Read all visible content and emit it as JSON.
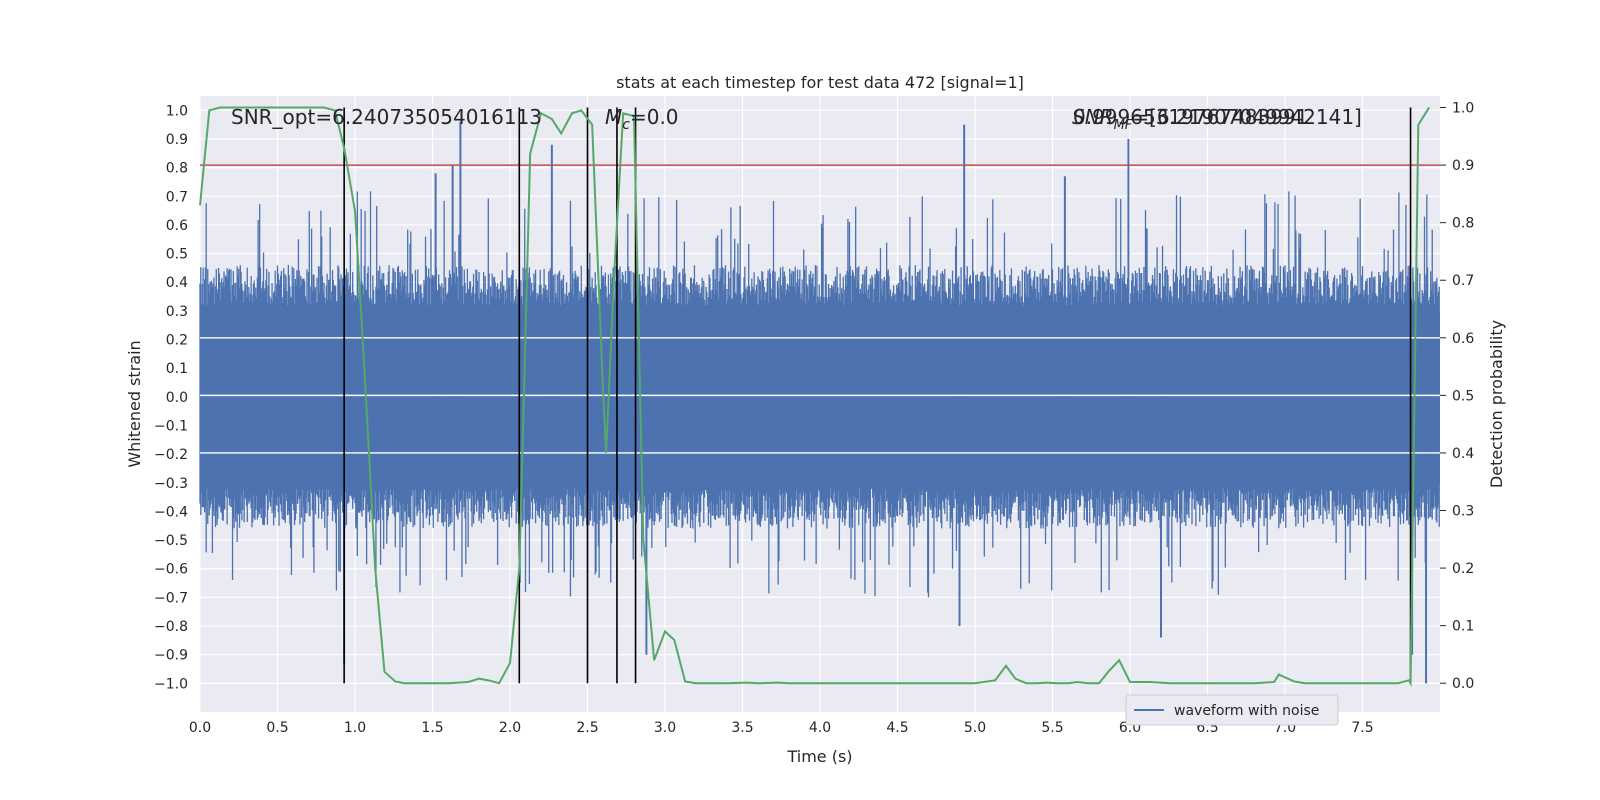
{
  "chart_data": {
    "type": "line",
    "title": "stats at each timestep for test data 472 [signal=1]",
    "xlabel": "Time (s)",
    "ylabel": "Whitened strain",
    "y2label": "Detection probability",
    "xlim": [
      0.0,
      8.0
    ],
    "ylim": [
      -1.1,
      1.05
    ],
    "y2lim": [
      -0.05,
      1.02
    ],
    "xticks": [
      "0.0",
      "0.5",
      "1.0",
      "1.5",
      "2.0",
      "2.5",
      "3.0",
      "3.5",
      "4.0",
      "4.5",
      "5.0",
      "5.5",
      "6.0",
      "6.5",
      "7.0",
      "7.5"
    ],
    "yticks": [
      "1.0",
      "0.9",
      "0.8",
      "0.7",
      "0.6",
      "0.5",
      "0.4",
      "0.3",
      "0.2",
      "0.1",
      "0.0",
      "-0.1",
      "-0.2",
      "-0.3",
      "-0.4",
      "-0.5",
      "-0.6",
      "-0.7",
      "-0.8",
      "-0.9",
      "-1.0"
    ],
    "y2ticks": [
      "1.0",
      "0.9",
      "0.8",
      "0.7",
      "0.6",
      "0.5",
      "0.4",
      "0.3",
      "0.2",
      "0.1",
      "0.0"
    ],
    "annotations": {
      "snr_opt": "SNR_opt=6.240735054016113",
      "mc": "M",
      "mc_sub": "c",
      "mc_val": "=0.0",
      "snr_mf_overlap_a": "SNR",
      "snr_mf_overlap_b": "=[6.21907049942141]",
      "snr_mf_overlap_c": "0.99965319767483991"
    },
    "legend": {
      "label": "waveform with noise",
      "position": "bottom-right"
    },
    "threshold": {
      "value": 0.9,
      "color": "#c44e52"
    },
    "vertical_lines": [
      0.93,
      2.06,
      2.5,
      2.69,
      2.81,
      7.81
    ],
    "series": [
      {
        "name": "waveform with noise",
        "axis": "left",
        "color": "#4c72b0",
        "style": "dense-noise",
        "samples": 4096,
        "duration": 8.0,
        "typical_range": [
          -0.45,
          0.45
        ],
        "peaks": [
          {
            "t": 0.93,
            "v": -0.93
          },
          {
            "t": 1.68,
            "v": 0.96
          },
          {
            "t": 1.63,
            "v": 0.81
          },
          {
            "t": 1.52,
            "v": 0.78
          },
          {
            "t": 2.88,
            "v": -0.9
          },
          {
            "t": 4.93,
            "v": 0.95
          },
          {
            "t": 5.99,
            "v": 0.9
          },
          {
            "t": 6.2,
            "v": -0.84
          },
          {
            "t": 7.91,
            "v": -1.0
          },
          {
            "t": 4.9,
            "v": -0.8
          },
          {
            "t": 2.27,
            "v": 0.88
          },
          {
            "t": 5.58,
            "v": 0.77
          },
          {
            "t": 7.82,
            "v": -0.9
          }
        ]
      },
      {
        "name": "detection probability",
        "axis": "right",
        "color": "#55a868",
        "x": [
          0.0,
          0.06,
          0.13,
          0.2,
          0.4,
          0.6,
          0.8,
          0.87,
          0.93,
          1.0,
          1.06,
          1.13,
          1.19,
          1.26,
          1.32,
          1.46,
          1.6,
          1.73,
          1.8,
          1.86,
          1.93,
          2.0,
          2.06,
          2.09,
          2.13,
          2.2,
          2.27,
          2.33,
          2.4,
          2.46,
          2.53,
          2.6,
          2.62,
          2.67,
          2.73,
          2.8,
          2.86,
          2.93,
          3.0,
          3.06,
          3.13,
          3.2,
          3.4,
          3.53,
          3.6,
          3.73,
          3.8,
          3.93,
          4.0,
          4.2,
          4.4,
          4.6,
          4.8,
          5.0,
          5.13,
          5.2,
          5.26,
          5.33,
          5.4,
          5.46,
          5.53,
          5.6,
          5.66,
          5.73,
          5.8,
          5.86,
          5.93,
          6.0,
          6.13,
          6.26,
          6.4,
          6.6,
          6.8,
          6.93,
          6.96,
          7.06,
          7.13,
          7.26,
          7.4,
          7.6,
          7.73,
          7.8,
          7.81,
          7.86,
          7.93
        ],
        "values": [
          0.83,
          0.995,
          1.0,
          1.0,
          1.0,
          1.0,
          1.0,
          0.995,
          0.93,
          0.82,
          0.55,
          0.2,
          0.02,
          0.003,
          0.0,
          0.0,
          0.0,
          0.002,
          0.008,
          0.005,
          0.0,
          0.035,
          0.2,
          0.5,
          0.92,
          0.99,
          0.98,
          0.955,
          0.99,
          0.995,
          0.97,
          0.51,
          0.4,
          0.7,
          0.99,
          0.985,
          0.25,
          0.04,
          0.09,
          0.075,
          0.003,
          0.0,
          0.0,
          0.001,
          0.0,
          0.001,
          0.0,
          0.0,
          0.0,
          0.0,
          0.0,
          0.0,
          0.0,
          0.0,
          0.005,
          0.03,
          0.008,
          0.0,
          0.0,
          0.001,
          0.0,
          0.0,
          0.002,
          0.0,
          0.0,
          0.02,
          0.04,
          0.002,
          0.002,
          0.0,
          0.0,
          0.0,
          0.0,
          0.002,
          0.015,
          0.003,
          0.0,
          0.0,
          0.0,
          0.0,
          0.0,
          0.005,
          0.0,
          0.97,
          1.0
        ]
      }
    ]
  }
}
